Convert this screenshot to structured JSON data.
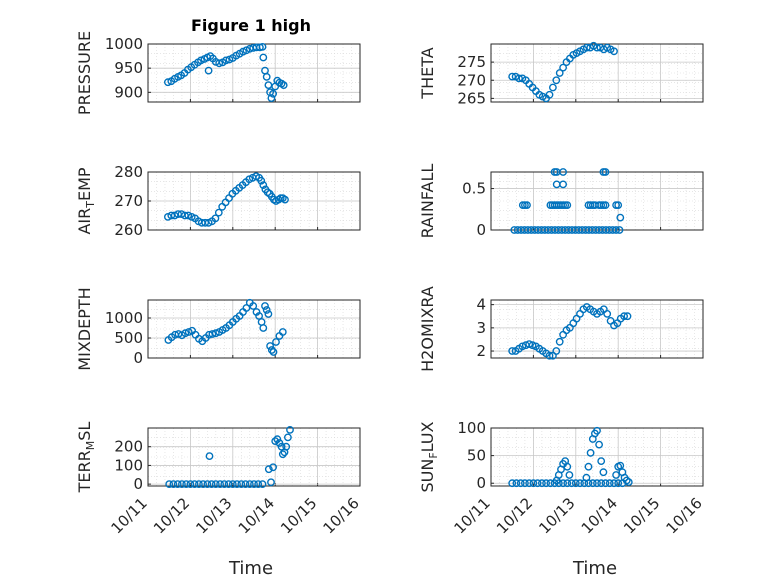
{
  "figure": {
    "title": "Figure 1 high",
    "xlabel": "Time"
  },
  "style": {
    "marker_color": "#0072BD",
    "axis_color": "#262626",
    "grid_color": "#d8d8d8"
  },
  "x_ticks": [
    "10/11",
    "10/12",
    "10/13",
    "10/14",
    "10/15",
    "10/16"
  ],
  "chart_data": [
    {
      "type": "scatter",
      "title": "Figure 1 high",
      "ylabel": "PRESSURE",
      "ylabel_sub": "",
      "xlabel": "",
      "xlim": [
        0,
        5
      ],
      "ylim": [
        880,
        1000
      ],
      "yticks": [
        900,
        950,
        1000
      ],
      "grid": true,
      "points": [
        [
          0.47,
          921
        ],
        [
          0.55,
          923
        ],
        [
          0.63,
          928
        ],
        [
          0.71,
          932
        ],
        [
          0.78,
          935
        ],
        [
          0.86,
          940
        ],
        [
          0.94,
          947
        ],
        [
          1.02,
          952
        ],
        [
          1.1,
          957
        ],
        [
          1.18,
          962
        ],
        [
          1.25,
          966
        ],
        [
          1.33,
          969
        ],
        [
          1.4,
          972
        ],
        [
          1.47,
          975
        ],
        [
          1.53,
          970
        ],
        [
          1.6,
          963
        ],
        [
          1.68,
          960
        ],
        [
          1.76,
          962
        ],
        [
          1.84,
          966
        ],
        [
          1.92,
          968
        ],
        [
          2.0,
          971
        ],
        [
          2.08,
          976
        ],
        [
          2.16,
          980
        ],
        [
          2.24,
          984
        ],
        [
          2.32,
          987
        ],
        [
          2.4,
          990
        ],
        [
          2.48,
          992
        ],
        [
          2.56,
          993
        ],
        [
          2.64,
          993
        ],
        [
          2.7,
          994
        ],
        [
          1.43,
          945
        ],
        [
          2.72,
          972
        ],
        [
          2.76,
          945
        ],
        [
          2.8,
          932
        ],
        [
          2.84,
          915
        ],
        [
          2.88,
          900
        ],
        [
          2.91,
          888
        ],
        [
          2.95,
          897
        ],
        [
          3.0,
          912
        ],
        [
          3.05,
          924
        ],
        [
          3.1,
          920
        ],
        [
          3.15,
          918
        ],
        [
          3.2,
          915
        ]
      ]
    },
    {
      "type": "scatter",
      "title": "",
      "ylabel": "THETA",
      "ylabel_sub": "",
      "xlabel": "",
      "xlim": [
        0,
        5
      ],
      "ylim": [
        264,
        280
      ],
      "yticks": [
        265,
        270,
        275
      ],
      "grid": true,
      "points": [
        [
          0.5,
          271
        ],
        [
          0.58,
          271
        ],
        [
          0.66,
          270.5
        ],
        [
          0.74,
          270.5
        ],
        [
          0.82,
          270
        ],
        [
          0.9,
          269
        ],
        [
          0.98,
          268
        ],
        [
          1.06,
          267
        ],
        [
          1.14,
          266
        ],
        [
          1.22,
          265.5
        ],
        [
          1.3,
          265
        ],
        [
          1.38,
          266
        ],
        [
          1.46,
          268
        ],
        [
          1.54,
          270
        ],
        [
          1.62,
          272
        ],
        [
          1.7,
          273.5
        ],
        [
          1.78,
          275
        ],
        [
          1.86,
          276
        ],
        [
          1.94,
          277
        ],
        [
          2.02,
          277.5
        ],
        [
          2.1,
          278
        ],
        [
          2.18,
          278.5
        ],
        [
          2.26,
          279
        ],
        [
          2.34,
          279
        ],
        [
          2.42,
          279.5
        ],
        [
          2.5,
          279
        ],
        [
          2.58,
          279
        ],
        [
          2.66,
          278.5
        ],
        [
          2.74,
          279
        ],
        [
          2.82,
          278.5
        ],
        [
          2.9,
          278
        ]
      ]
    },
    {
      "type": "scatter",
      "title": "",
      "ylabel": "AIR",
      "ylabel_sub": "T",
      "ylabel_after": "EMP",
      "xlabel": "",
      "xlim": [
        0,
        5
      ],
      "ylim": [
        260,
        280
      ],
      "yticks": [
        260,
        270,
        280
      ],
      "grid": true,
      "points": [
        [
          0.47,
          264.5
        ],
        [
          0.55,
          265
        ],
        [
          0.63,
          265
        ],
        [
          0.71,
          265.5
        ],
        [
          0.79,
          265.5
        ],
        [
          0.87,
          265
        ],
        [
          0.95,
          265
        ],
        [
          1.03,
          264.5
        ],
        [
          1.11,
          264
        ],
        [
          1.19,
          263
        ],
        [
          1.27,
          262.5
        ],
        [
          1.35,
          262.5
        ],
        [
          1.43,
          262.5
        ],
        [
          1.51,
          263
        ],
        [
          1.59,
          264
        ],
        [
          1.67,
          266
        ],
        [
          1.75,
          268
        ],
        [
          1.83,
          269.5
        ],
        [
          1.91,
          271
        ],
        [
          1.99,
          272.5
        ],
        [
          2.07,
          273.5
        ],
        [
          2.15,
          274.5
        ],
        [
          2.23,
          275.5
        ],
        [
          2.31,
          276.5
        ],
        [
          2.39,
          277.5
        ],
        [
          2.47,
          278
        ],
        [
          2.55,
          278.5
        ],
        [
          2.62,
          278
        ],
        [
          2.67,
          277
        ],
        [
          2.72,
          275.5
        ],
        [
          2.77,
          274
        ],
        [
          2.82,
          273
        ],
        [
          2.87,
          272.5
        ],
        [
          2.92,
          271.5
        ],
        [
          2.97,
          270.5
        ],
        [
          3.02,
          270
        ],
        [
          3.08,
          270.5
        ],
        [
          3.13,
          271
        ],
        [
          3.18,
          271
        ],
        [
          3.23,
          270.5
        ]
      ]
    },
    {
      "type": "scatter",
      "title": "",
      "ylabel": "RAINFALL",
      "ylabel_sub": "",
      "xlabel": "",
      "xlim": [
        0,
        5
      ],
      "ylim": [
        0,
        0.7
      ],
      "yticks": [
        0,
        0.5
      ],
      "grid": true,
      "points": [
        [
          0.55,
          0
        ],
        [
          0.63,
          0
        ],
        [
          0.71,
          0
        ],
        [
          0.79,
          0
        ],
        [
          0.87,
          0
        ],
        [
          0.95,
          0
        ],
        [
          1.03,
          0
        ],
        [
          1.11,
          0
        ],
        [
          1.19,
          0
        ],
        [
          1.27,
          0
        ],
        [
          1.35,
          0
        ],
        [
          1.43,
          0
        ],
        [
          1.51,
          0
        ],
        [
          1.59,
          0
        ],
        [
          1.67,
          0
        ],
        [
          1.75,
          0
        ],
        [
          1.83,
          0
        ],
        [
          1.91,
          0
        ],
        [
          1.99,
          0
        ],
        [
          2.07,
          0
        ],
        [
          2.15,
          0
        ],
        [
          2.23,
          0
        ],
        [
          2.31,
          0
        ],
        [
          2.39,
          0
        ],
        [
          2.47,
          0
        ],
        [
          2.55,
          0
        ],
        [
          2.63,
          0
        ],
        [
          2.71,
          0
        ],
        [
          2.79,
          0
        ],
        [
          2.87,
          0
        ],
        [
          2.95,
          0
        ],
        [
          3.03,
          0
        ],
        [
          0.75,
          0.3
        ],
        [
          0.8,
          0.3
        ],
        [
          0.85,
          0.3
        ],
        [
          1.4,
          0.3
        ],
        [
          1.45,
          0.3
        ],
        [
          1.5,
          0.3
        ],
        [
          1.55,
          0.3
        ],
        [
          1.6,
          0.3
        ],
        [
          1.65,
          0.3
        ],
        [
          1.7,
          0.3
        ],
        [
          1.75,
          0.3
        ],
        [
          1.8,
          0.3
        ],
        [
          2.3,
          0.3
        ],
        [
          2.35,
          0.3
        ],
        [
          2.4,
          0.3
        ],
        [
          2.45,
          0.3
        ],
        [
          2.55,
          0.3
        ],
        [
          2.6,
          0.3
        ],
        [
          2.65,
          0.3
        ],
        [
          2.7,
          0.3
        ],
        [
          2.95,
          0.3
        ],
        [
          3.0,
          0.3
        ],
        [
          1.5,
          0.7
        ],
        [
          1.55,
          0.7
        ],
        [
          1.7,
          0.7
        ],
        [
          2.65,
          0.7
        ],
        [
          2.7,
          0.7
        ],
        [
          1.55,
          0.55
        ],
        [
          1.7,
          0.55
        ],
        [
          3.05,
          0.15
        ]
      ]
    },
    {
      "type": "scatter",
      "title": "",
      "ylabel": "MIXDEPTH",
      "ylabel_sub": "",
      "xlabel": "",
      "xlim": [
        0,
        5
      ],
      "ylim": [
        0,
        1450
      ],
      "yticks": [
        0,
        500,
        1000
      ],
      "grid": true,
      "points": [
        [
          0.48,
          450
        ],
        [
          0.56,
          520
        ],
        [
          0.64,
          580
        ],
        [
          0.72,
          600
        ],
        [
          0.8,
          570
        ],
        [
          0.88,
          620
        ],
        [
          0.96,
          650
        ],
        [
          1.04,
          680
        ],
        [
          1.12,
          580
        ],
        [
          1.2,
          480
        ],
        [
          1.28,
          420
        ],
        [
          1.36,
          500
        ],
        [
          1.44,
          580
        ],
        [
          1.52,
          600
        ],
        [
          1.6,
          620
        ],
        [
          1.68,
          650
        ],
        [
          1.76,
          700
        ],
        [
          1.84,
          750
        ],
        [
          1.92,
          820
        ],
        [
          2.0,
          900
        ],
        [
          2.08,
          980
        ],
        [
          2.16,
          1050
        ],
        [
          2.24,
          1150
        ],
        [
          2.32,
          1250
        ],
        [
          2.4,
          1380
        ],
        [
          2.48,
          1300
        ],
        [
          2.56,
          1150
        ],
        [
          2.62,
          1050
        ],
        [
          2.68,
          900
        ],
        [
          2.72,
          750
        ],
        [
          2.76,
          1300
        ],
        [
          2.8,
          1200
        ],
        [
          2.84,
          1100
        ],
        [
          2.88,
          300
        ],
        [
          2.92,
          200
        ],
        [
          2.96,
          150
        ],
        [
          3.02,
          400
        ],
        [
          3.1,
          550
        ],
        [
          3.18,
          650
        ]
      ]
    },
    {
      "type": "scatter",
      "title": "",
      "ylabel": "H2OMIXRA",
      "ylabel_sub": "",
      "xlabel": "",
      "xlim": [
        0,
        5
      ],
      "ylim": [
        1.7,
        4.2
      ],
      "yticks": [
        2,
        3,
        4
      ],
      "grid": true,
      "points": [
        [
          0.5,
          2.0
        ],
        [
          0.58,
          2.0
        ],
        [
          0.66,
          2.1
        ],
        [
          0.74,
          2.2
        ],
        [
          0.82,
          2.25
        ],
        [
          0.9,
          2.3
        ],
        [
          0.98,
          2.25
        ],
        [
          1.06,
          2.2
        ],
        [
          1.14,
          2.1
        ],
        [
          1.22,
          2.0
        ],
        [
          1.3,
          1.9
        ],
        [
          1.38,
          1.8
        ],
        [
          1.46,
          1.8
        ],
        [
          1.54,
          2.0
        ],
        [
          1.62,
          2.4
        ],
        [
          1.7,
          2.7
        ],
        [
          1.78,
          2.9
        ],
        [
          1.86,
          3.0
        ],
        [
          1.94,
          3.2
        ],
        [
          2.02,
          3.4
        ],
        [
          2.1,
          3.6
        ],
        [
          2.18,
          3.8
        ],
        [
          2.26,
          3.9
        ],
        [
          2.34,
          3.8
        ],
        [
          2.42,
          3.7
        ],
        [
          2.5,
          3.6
        ],
        [
          2.58,
          3.7
        ],
        [
          2.66,
          3.8
        ],
        [
          2.74,
          3.6
        ],
        [
          2.82,
          3.3
        ],
        [
          2.9,
          3.1
        ],
        [
          2.98,
          3.2
        ],
        [
          3.06,
          3.4
        ],
        [
          3.14,
          3.5
        ],
        [
          3.22,
          3.5
        ]
      ]
    },
    {
      "type": "scatter",
      "title": "",
      "ylabel": "TERR",
      "ylabel_sub": "M",
      "ylabel_after": "SL",
      "xlabel": "Time",
      "xlim": [
        0,
        5
      ],
      "ylim": [
        -10,
        300
      ],
      "yticks": [
        0,
        100,
        200
      ],
      "grid": true,
      "points": [
        [
          0.5,
          0
        ],
        [
          0.6,
          0
        ],
        [
          0.7,
          0
        ],
        [
          0.8,
          0
        ],
        [
          0.9,
          0
        ],
        [
          1.0,
          0
        ],
        [
          1.1,
          0
        ],
        [
          1.2,
          0
        ],
        [
          1.3,
          0
        ],
        [
          1.4,
          0
        ],
        [
          1.5,
          0
        ],
        [
          1.6,
          0
        ],
        [
          1.7,
          0
        ],
        [
          1.8,
          0
        ],
        [
          1.9,
          0
        ],
        [
          2.0,
          0
        ],
        [
          2.1,
          0
        ],
        [
          2.2,
          0
        ],
        [
          2.3,
          0
        ],
        [
          2.4,
          0
        ],
        [
          2.5,
          0
        ],
        [
          2.6,
          0
        ],
        [
          2.7,
          0
        ],
        [
          1.45,
          150
        ],
        [
          2.85,
          80
        ],
        [
          2.9,
          10
        ],
        [
          2.95,
          90
        ],
        [
          3.0,
          230
        ],
        [
          3.05,
          240
        ],
        [
          3.1,
          220
        ],
        [
          3.15,
          200
        ],
        [
          3.18,
          160
        ],
        [
          3.22,
          170
        ],
        [
          3.26,
          200
        ],
        [
          3.3,
          250
        ],
        [
          3.35,
          290
        ]
      ]
    },
    {
      "type": "scatter",
      "title": "",
      "ylabel": "SUN",
      "ylabel_sub": "F",
      "ylabel_after": "LUX",
      "xlabel": "Time",
      "xlim": [
        0,
        5
      ],
      "ylim": [
        -5,
        100
      ],
      "yticks": [
        0,
        50,
        100
      ],
      "grid": true,
      "points": [
        [
          0.5,
          0
        ],
        [
          0.6,
          0
        ],
        [
          0.7,
          0
        ],
        [
          0.8,
          0
        ],
        [
          0.9,
          0
        ],
        [
          1.0,
          0
        ],
        [
          1.1,
          0
        ],
        [
          1.2,
          0
        ],
        [
          1.3,
          0
        ],
        [
          1.4,
          0
        ],
        [
          1.5,
          0
        ],
        [
          1.6,
          0
        ],
        [
          1.7,
          0
        ],
        [
          1.8,
          0
        ],
        [
          1.9,
          0
        ],
        [
          2.0,
          0
        ],
        [
          2.1,
          0
        ],
        [
          2.2,
          0
        ],
        [
          2.3,
          0
        ],
        [
          2.4,
          0
        ],
        [
          2.5,
          0
        ],
        [
          2.6,
          0
        ],
        [
          2.7,
          0
        ],
        [
          2.8,
          0
        ],
        [
          2.9,
          0
        ],
        [
          3.0,
          0
        ],
        [
          3.1,
          0
        ],
        [
          1.55,
          5
        ],
        [
          1.6,
          15
        ],
        [
          1.65,
          25
        ],
        [
          1.7,
          35
        ],
        [
          1.75,
          40
        ],
        [
          1.8,
          30
        ],
        [
          1.85,
          15
        ],
        [
          2.25,
          10
        ],
        [
          2.3,
          30
        ],
        [
          2.35,
          55
        ],
        [
          2.4,
          80
        ],
        [
          2.45,
          90
        ],
        [
          2.5,
          95
        ],
        [
          2.55,
          70
        ],
        [
          2.6,
          40
        ],
        [
          2.65,
          20
        ],
        [
          2.95,
          15
        ],
        [
          3.0,
          30
        ],
        [
          3.05,
          32
        ],
        [
          3.1,
          20
        ],
        [
          3.15,
          10
        ],
        [
          3.2,
          5
        ],
        [
          3.25,
          2
        ]
      ]
    }
  ]
}
